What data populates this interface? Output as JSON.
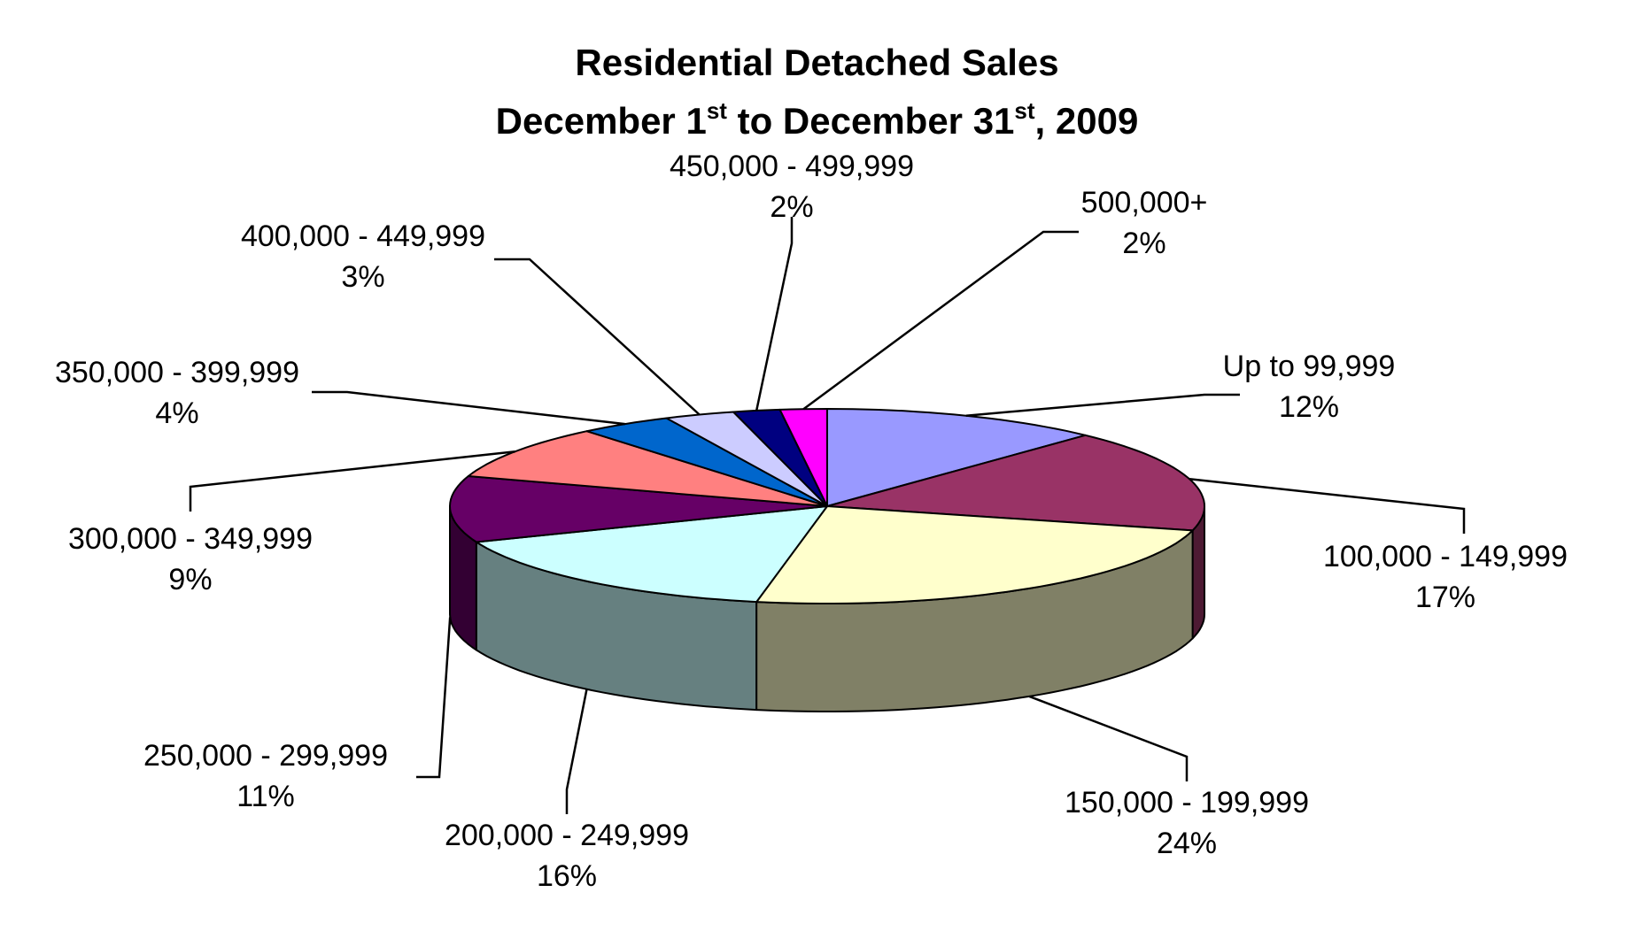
{
  "chart_data": {
    "type": "pie",
    "title": {
      "line1": "Residential Detached Sales",
      "line2_a": "December 1",
      "line2_sup1": "st",
      "line2_b": " to December 31",
      "line2_sup2": "st",
      "line2_c": ", 2009"
    },
    "slices": [
      {
        "label": "Up to 99,999",
        "pct_label": "12%",
        "value": 12,
        "color": "#9999FF"
      },
      {
        "label": "100,000 - 149,999",
        "pct_label": "17%",
        "value": 17,
        "color": "#993366"
      },
      {
        "label": "150,000 - 199,999",
        "pct_label": "24%",
        "value": 24,
        "color": "#FFFFCC"
      },
      {
        "label": "200,000 - 249,999",
        "pct_label": "16%",
        "value": 16,
        "color": "#CCFFFF"
      },
      {
        "label": "250,000 - 299,999",
        "pct_label": "11%",
        "value": 11,
        "color": "#660066"
      },
      {
        "label": "300,000 - 349,999",
        "pct_label": "9%",
        "value": 9,
        "color": "#FF8080"
      },
      {
        "label": "350,000 - 399,999",
        "pct_label": "4%",
        "value": 4,
        "color": "#0066CC"
      },
      {
        "label": "400,000 - 449,999",
        "pct_label": "3%",
        "value": 3,
        "color": "#CCCCFF"
      },
      {
        "label": "450,000 - 499,999",
        "pct_label": "2%",
        "value": 2,
        "color": "#000080"
      },
      {
        "label": "500,000+",
        "pct_label": "2%",
        "value": 2,
        "color": "#FF00FF"
      }
    ]
  }
}
